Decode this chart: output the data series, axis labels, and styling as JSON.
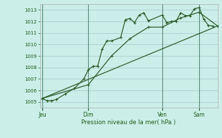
{
  "background_color": "#cceee8",
  "grid_color": "#aacccc",
  "line_color": "#2a5c2a",
  "xlabel": "Pression niveau de la mer( hPa )",
  "ylim": [
    1004.5,
    1013.5
  ],
  "yticks": [
    1005,
    1006,
    1007,
    1008,
    1009,
    1010,
    1011,
    1012,
    1013
  ],
  "day_labels": [
    "Jeu",
    "Dim",
    "Ven",
    "Sam"
  ],
  "day_positions": [
    0,
    10,
    26,
    34
  ],
  "xlim": [
    -0.5,
    38
  ],
  "series1_x": [
    0,
    1,
    2,
    3,
    5,
    7,
    9,
    10,
    11,
    12,
    13,
    14,
    15,
    17,
    18,
    19,
    20,
    21,
    22,
    23,
    26,
    27,
    28,
    29,
    30,
    31,
    32,
    33,
    34,
    35,
    36,
    37
  ],
  "series1_y": [
    1005.3,
    1005.1,
    1005.1,
    1005.2,
    1005.7,
    1006.2,
    1007.0,
    1007.8,
    1008.1,
    1008.1,
    1009.6,
    1010.3,
    1010.3,
    1010.6,
    1012.15,
    1012.25,
    1011.9,
    1012.55,
    1012.75,
    1012.05,
    1012.55,
    1011.9,
    1012.0,
    1012.0,
    1012.75,
    1012.5,
    1012.5,
    1013.1,
    1013.2,
    1012.2,
    1011.65,
    1011.6
  ],
  "series2_x": [
    0,
    10,
    15,
    19,
    23,
    26,
    30,
    34,
    38
  ],
  "series2_y": [
    1005.3,
    1006.5,
    1009.0,
    1010.5,
    1011.5,
    1011.5,
    1012.3,
    1012.8,
    1011.6
  ],
  "series3_x": [
    0,
    38
  ],
  "series3_y": [
    1005.3,
    1011.6
  ]
}
